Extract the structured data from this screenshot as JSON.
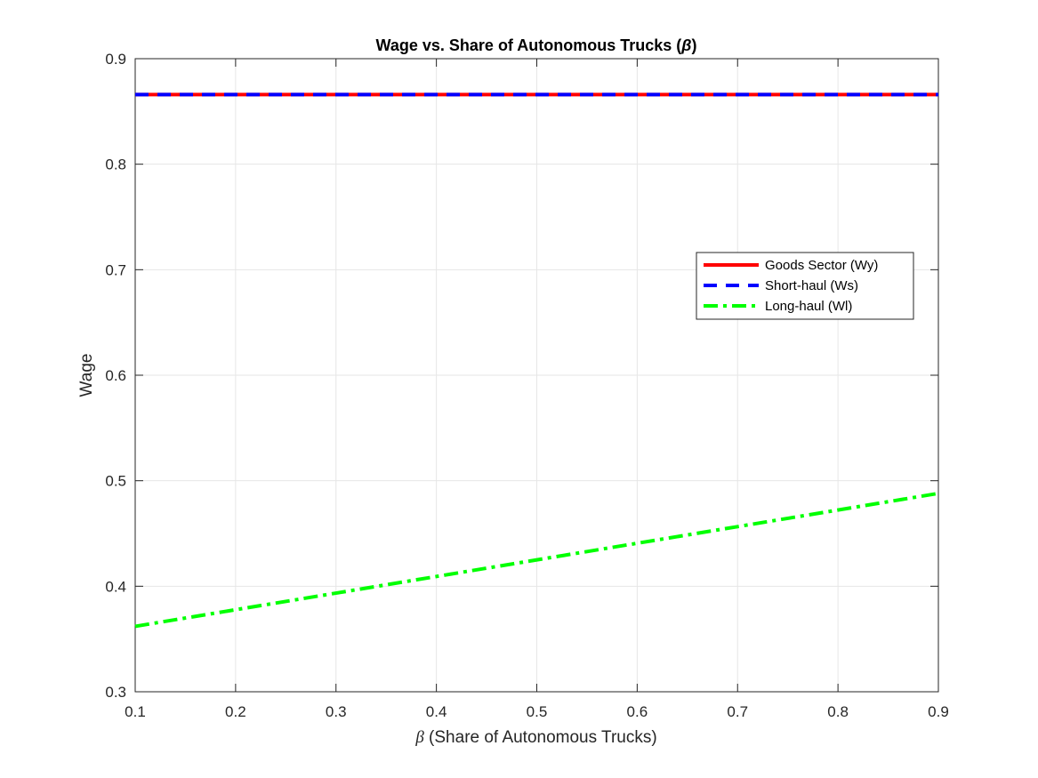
{
  "chart_data": {
    "type": "line",
    "title": "Wage vs. Share of Autonomous Trucks (",
    "title_symbol": "β",
    "title_suffix": ")",
    "xlabel_symbol": "β",
    "xlabel": " (Share of Autonomous Trucks)",
    "ylabel": "Wage",
    "xlim": [
      0.1,
      0.9
    ],
    "ylim": [
      0.3,
      0.9
    ],
    "xticks": [
      "0.1",
      "0.2",
      "0.3",
      "0.4",
      "0.5",
      "0.6",
      "0.7",
      "0.8",
      "0.9"
    ],
    "yticks": [
      "0.3",
      "0.4",
      "0.5",
      "0.6",
      "0.7",
      "0.8",
      "0.9"
    ],
    "grid": true,
    "legend_position": "east",
    "series": [
      {
        "name": "Goods Sector (Wy)",
        "color": "#ff0000",
        "style": "solid",
        "x": [
          0.1,
          0.9
        ],
        "y": [
          0.866,
          0.866
        ]
      },
      {
        "name": "Short-haul (Ws)",
        "color": "#0000ff",
        "style": "dashed",
        "x": [
          0.1,
          0.9
        ],
        "y": [
          0.866,
          0.866
        ]
      },
      {
        "name": "Long-haul (Wl)",
        "color": "#00ff00",
        "style": "dashdot",
        "x": [
          0.1,
          0.9
        ],
        "y": [
          0.362,
          0.488
        ]
      }
    ]
  }
}
